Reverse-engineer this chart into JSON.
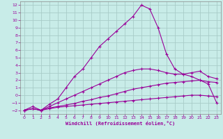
{
  "xlabel": "Windchill (Refroidissement éolien,°C)",
  "bg_color": "#c8ece8",
  "grid_color": "#a8ccc8",
  "line_color": "#990099",
  "x_ticks": [
    0,
    1,
    2,
    3,
    4,
    5,
    6,
    7,
    8,
    9,
    10,
    11,
    12,
    13,
    14,
    15,
    16,
    17,
    18,
    19,
    20,
    21,
    22,
    23
  ],
  "y_ticks": [
    -2,
    -1,
    0,
    1,
    2,
    3,
    4,
    5,
    6,
    7,
    8,
    9,
    10,
    11,
    12
  ],
  "xlim": [
    -0.5,
    23.5
  ],
  "ylim": [
    -2.5,
    12.5
  ],
  "series": [
    {
      "x": [
        0,
        1,
        2,
        3,
        4,
        5,
        6,
        7,
        8,
        9,
        10,
        11,
        12,
        13,
        14,
        15,
        16,
        17,
        18,
        19,
        20,
        21,
        22,
        23
      ],
      "y": [
        -2.0,
        -1.8,
        -2.0,
        -1.8,
        -1.6,
        -1.5,
        -1.4,
        -1.3,
        -1.2,
        -1.1,
        -1.0,
        -0.9,
        -0.8,
        -0.7,
        -0.6,
        -0.5,
        -0.4,
        -0.3,
        -0.2,
        -0.1,
        0.0,
        0.0,
        -0.1,
        -0.2
      ]
    },
    {
      "x": [
        0,
        1,
        2,
        3,
        4,
        5,
        6,
        7,
        8,
        9,
        10,
        11,
        12,
        13,
        14,
        15,
        16,
        17,
        18,
        19,
        20,
        21,
        22,
        23
      ],
      "y": [
        -2.0,
        -1.8,
        -2.0,
        -1.7,
        -1.5,
        -1.3,
        -1.1,
        -0.8,
        -0.6,
        -0.3,
        -0.1,
        0.2,
        0.5,
        0.8,
        1.0,
        1.2,
        1.4,
        1.6,
        1.7,
        1.8,
        1.9,
        2.0,
        1.8,
        1.7
      ]
    },
    {
      "x": [
        0,
        1,
        2,
        3,
        4,
        5,
        6,
        7,
        8,
        9,
        10,
        11,
        12,
        13,
        14,
        15,
        16,
        17,
        18,
        19,
        20,
        21,
        22,
        23
      ],
      "y": [
        -2.0,
        -1.8,
        -2.0,
        -1.5,
        -1.0,
        -0.5,
        0.0,
        0.5,
        1.0,
        1.5,
        2.0,
        2.5,
        3.0,
        3.3,
        3.5,
        3.5,
        3.3,
        3.0,
        2.8,
        2.8,
        3.0,
        3.2,
        2.5,
        2.2
      ]
    },
    {
      "x": [
        0,
        1,
        2,
        3,
        4,
        5,
        6,
        7,
        8,
        9,
        10,
        11,
        12,
        13,
        14,
        15,
        16,
        17,
        18,
        19,
        20,
        21,
        22,
        23
      ],
      "y": [
        -2.0,
        -1.5,
        -2.0,
        -1.2,
        -0.5,
        1.0,
        2.5,
        3.5,
        5.0,
        6.5,
        7.5,
        8.5,
        9.5,
        10.5,
        12.0,
        11.5,
        9.0,
        5.5,
        3.5,
        2.8,
        2.5,
        2.0,
        1.5,
        -1.0
      ]
    }
  ]
}
